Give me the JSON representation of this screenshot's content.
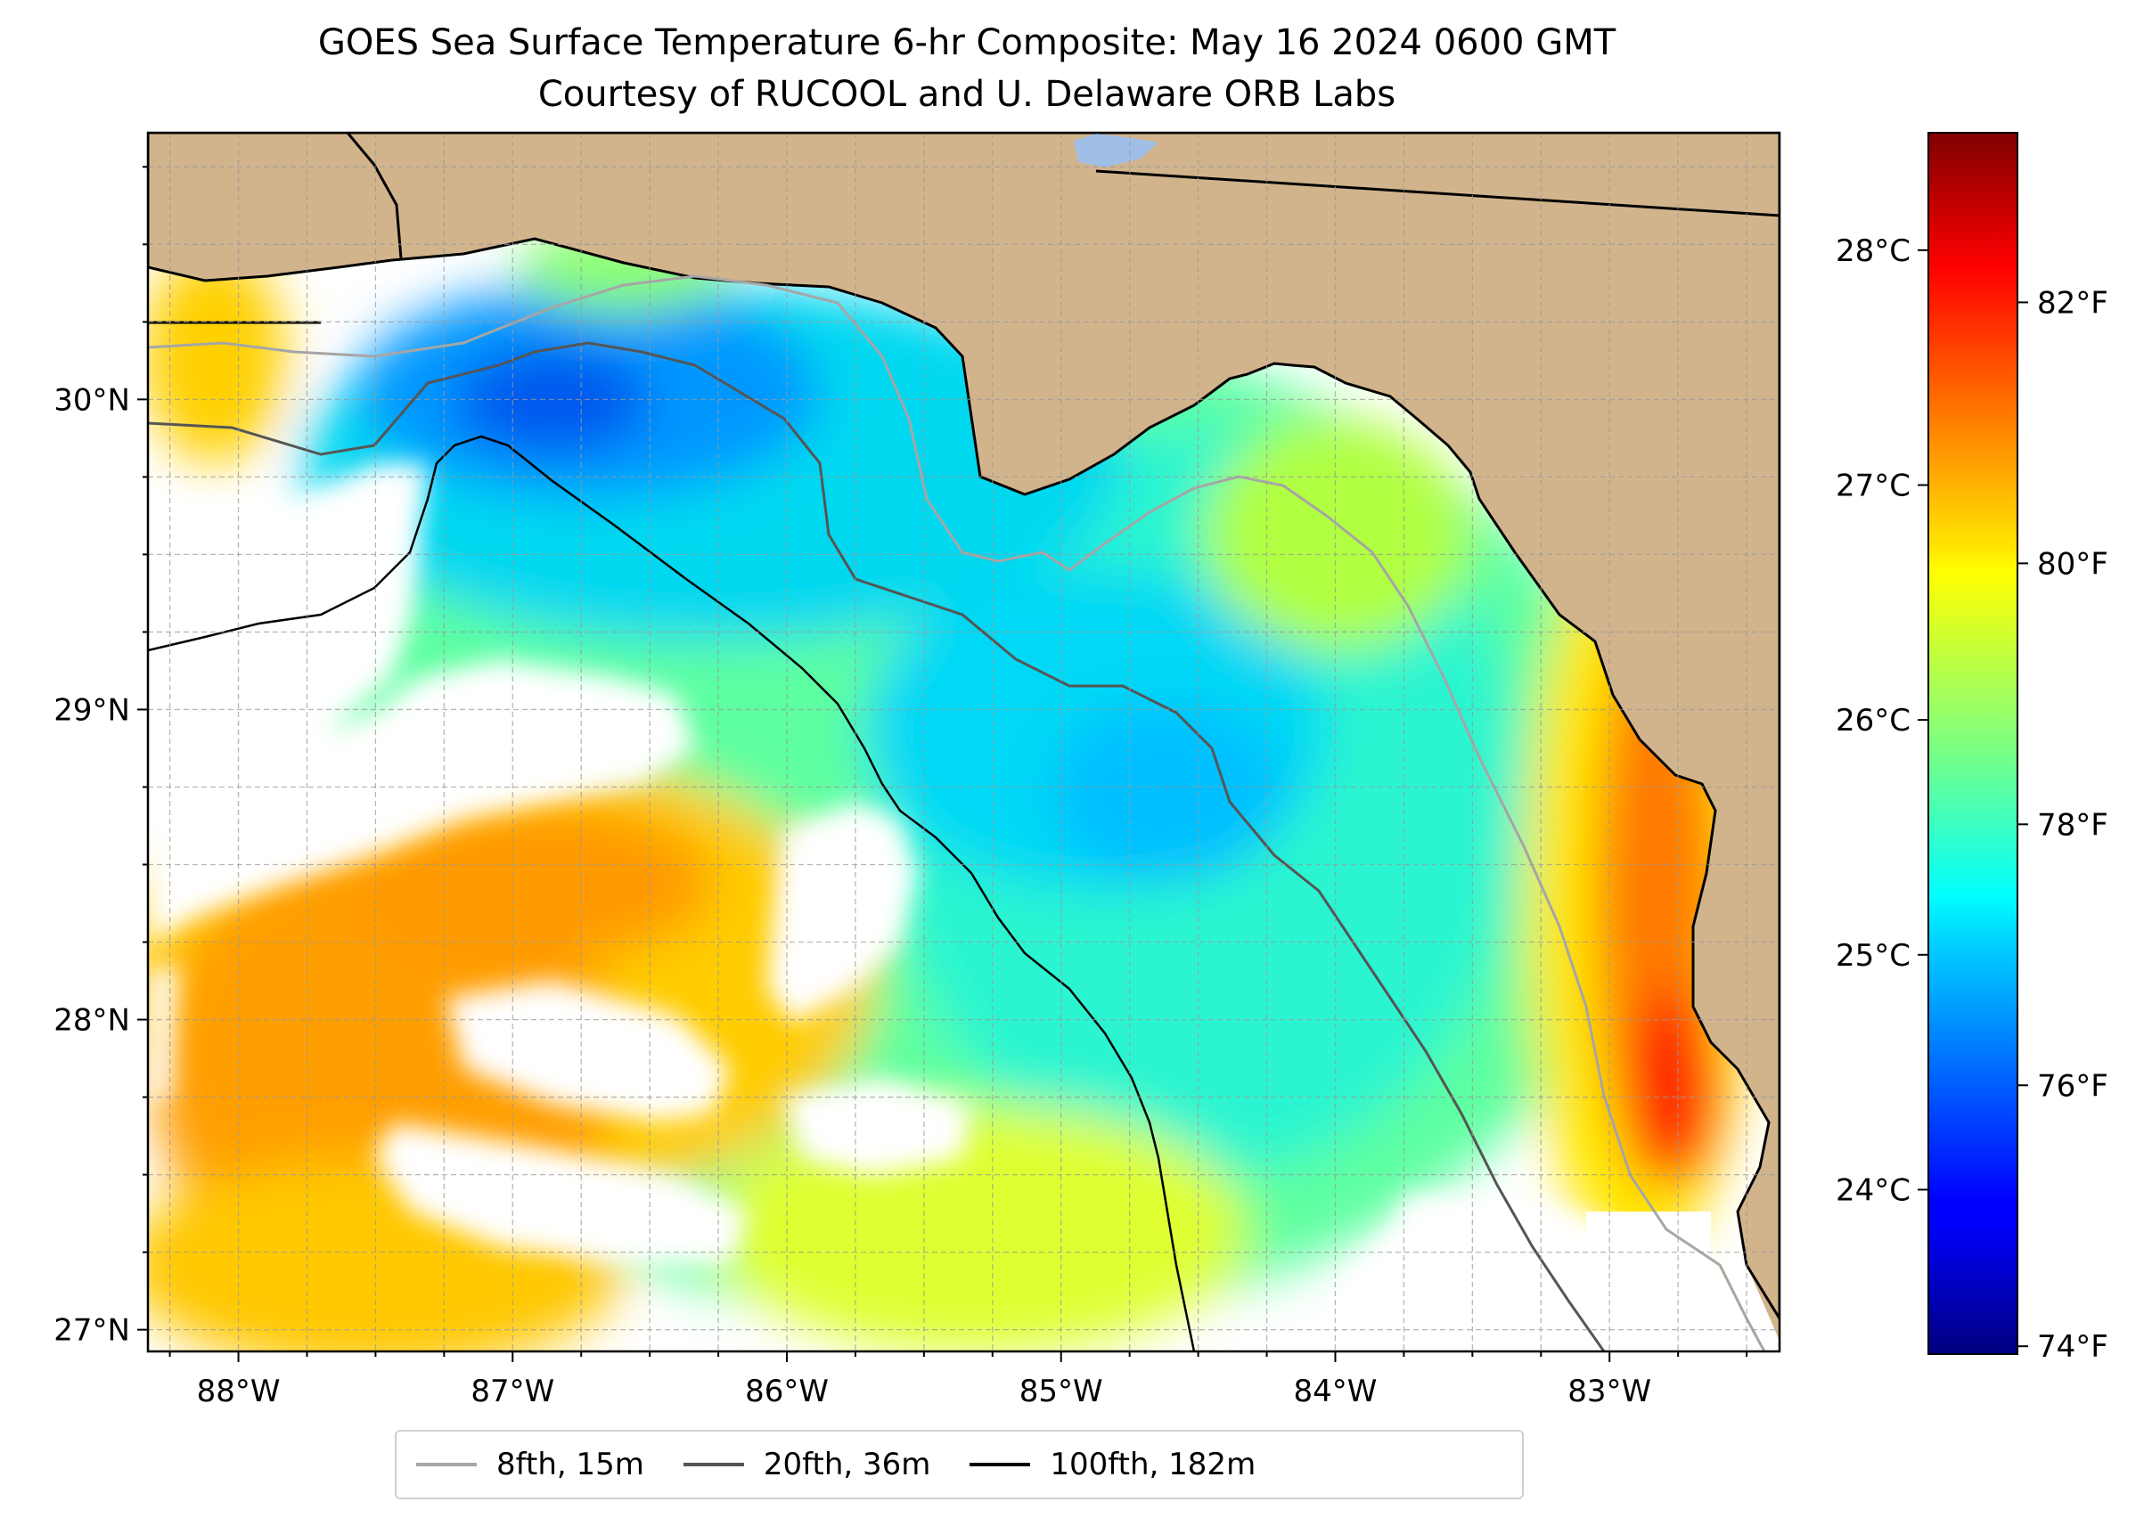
{
  "title": {
    "line1": "GOES Sea Surface Temperature 6-hr Composite: May 16 2024 0600 GMT",
    "line2": "Courtesy of RUCOOL and U. Delaware ORB Labs"
  },
  "map": {
    "extent": {
      "lon_min": -88.33,
      "lon_max": -82.38,
      "lat_min": 26.93,
      "lat_max": 30.86
    },
    "lon_ticks": [
      {
        "lon": -88,
        "label": "88°W"
      },
      {
        "lon": -87,
        "label": "87°W"
      },
      {
        "lon": -86,
        "label": "86°W"
      },
      {
        "lon": -85,
        "label": "85°W"
      },
      {
        "lon": -84,
        "label": "84°W"
      },
      {
        "lon": -83,
        "label": "83°W"
      }
    ],
    "lat_ticks": [
      {
        "lat": 30,
        "label": "30°N"
      },
      {
        "lat": 29,
        "label": "29°N"
      },
      {
        "lat": 28,
        "label": "28°N"
      },
      {
        "lat": 27,
        "label": "27°N"
      }
    ],
    "grid": true,
    "land_color": "#d2b48c",
    "no_data_color": "#ffffff",
    "water_body_color": "#9fbfe6"
  },
  "colorbar": {
    "colormap": "jet",
    "range_c": [
      23.3,
      28.5
    ],
    "celsius_ticks": [
      {
        "value": 28,
        "label": "28°C"
      },
      {
        "value": 27,
        "label": "27°C"
      },
      {
        "value": 26,
        "label": "26°C"
      },
      {
        "value": 25,
        "label": "25°C"
      },
      {
        "value": 24,
        "label": "24°C"
      }
    ],
    "fahrenheit_ticks": [
      {
        "value": 82,
        "label": "82°F"
      },
      {
        "value": 80,
        "label": "80°F"
      },
      {
        "value": 78,
        "label": "78°F"
      },
      {
        "value": 76,
        "label": "76°F"
      },
      {
        "value": 74,
        "label": "74°F"
      }
    ]
  },
  "legend": {
    "items": [
      {
        "label": "8fth, 15m",
        "color": "#a6a6a6"
      },
      {
        "label": "20fth, 36m",
        "color": "#555555"
      },
      {
        "label": "100fth, 182m",
        "color": "#000000"
      }
    ]
  }
}
